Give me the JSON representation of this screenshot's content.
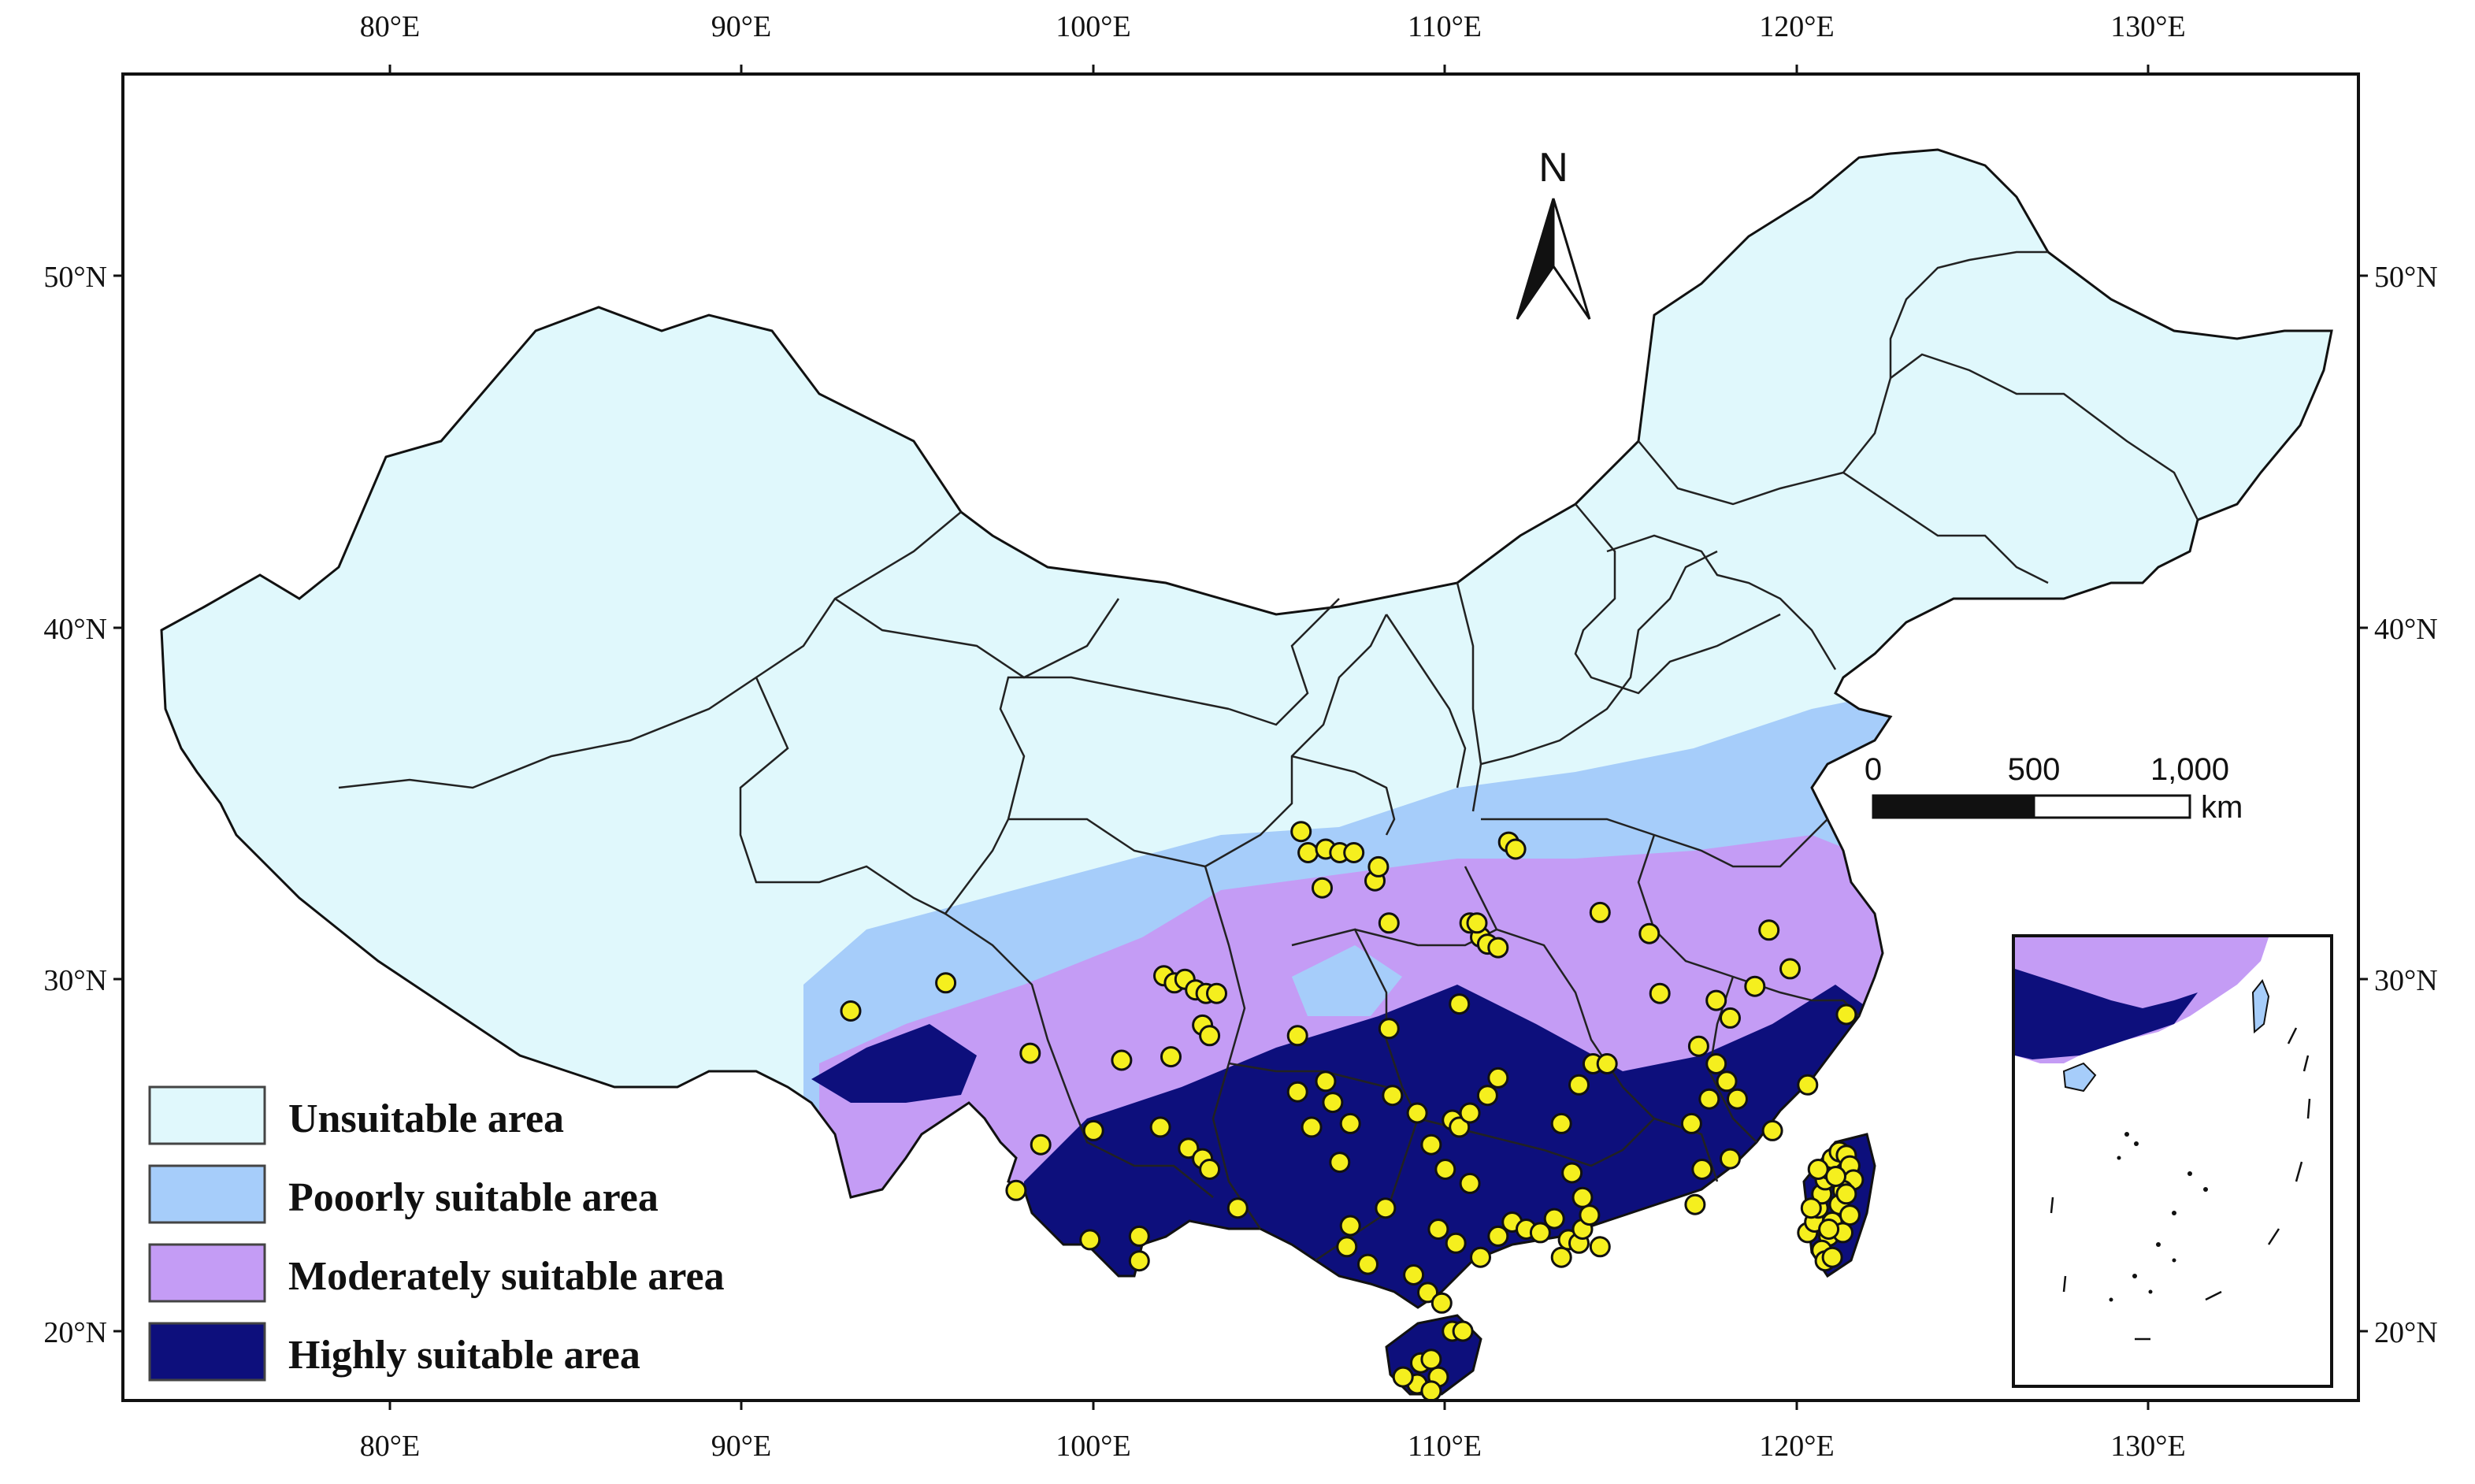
{
  "map": {
    "lon_ticks": [
      "80°E",
      "90°E",
      "100°E",
      "110°E",
      "120°E",
      "130°E"
    ],
    "lat_ticks": [
      "20°N",
      "30°N",
      "40°N",
      "50°N"
    ],
    "north_label": "N",
    "scale_bar": {
      "labels": [
        "0",
        "500",
        "1,000"
      ],
      "unit": "km"
    },
    "legend": [
      {
        "label": "Unsuitable area",
        "color": "#e0f8fc"
      },
      {
        "label": "Pooorly suitable area",
        "color": "#a6cdfa"
      },
      {
        "label": "Moderately suitable area",
        "color": "#c49cf5"
      },
      {
        "label": "Highly suitable area",
        "color": "#0d0f7c"
      }
    ],
    "occurrence_color": "#f5ef1e",
    "occurrences_lonlat": [
      [
        93.1,
        29.1
      ],
      [
        95.8,
        29.9
      ],
      [
        98.2,
        27.9
      ],
      [
        98.5,
        25.3
      ],
      [
        97.8,
        24.0
      ],
      [
        100.0,
        25.7
      ],
      [
        100.8,
        27.7
      ],
      [
        101.9,
        25.8
      ],
      [
        101.3,
        22.7
      ],
      [
        99.9,
        22.6
      ],
      [
        101.3,
        22.0
      ],
      [
        102.0,
        30.1
      ],
      [
        102.3,
        29.9
      ],
      [
        102.6,
        30.0
      ],
      [
        102.9,
        29.7
      ],
      [
        103.2,
        29.6
      ],
      [
        103.5,
        29.6
      ],
      [
        103.1,
        28.7
      ],
      [
        103.3,
        28.4
      ],
      [
        102.2,
        27.8
      ],
      [
        102.7,
        25.2
      ],
      [
        103.1,
        24.9
      ],
      [
        103.3,
        24.6
      ],
      [
        104.1,
        23.5
      ],
      [
        105.9,
        34.2
      ],
      [
        106.1,
        33.6
      ],
      [
        106.6,
        33.7
      ],
      [
        107.0,
        33.6
      ],
      [
        107.4,
        33.6
      ],
      [
        108.0,
        32.8
      ],
      [
        108.1,
        33.2
      ],
      [
        106.5,
        32.6
      ],
      [
        108.4,
        31.6
      ],
      [
        105.8,
        28.4
      ],
      [
        105.8,
        26.8
      ],
      [
        106.2,
        25.8
      ],
      [
        106.6,
        27.1
      ],
      [
        106.8,
        26.5
      ],
      [
        107.3,
        25.9
      ],
      [
        107.0,
        24.8
      ],
      [
        107.3,
        23.0
      ],
      [
        107.2,
        22.4
      ],
      [
        107.8,
        21.9
      ],
      [
        108.3,
        23.5
      ],
      [
        108.5,
        26.7
      ],
      [
        108.4,
        28.6
      ],
      [
        109.2,
        26.2
      ],
      [
        109.6,
        25.3
      ],
      [
        110.0,
        24.6
      ],
      [
        110.2,
        26.0
      ],
      [
        110.4,
        25.8
      ],
      [
        110.7,
        26.2
      ],
      [
        110.7,
        24.2
      ],
      [
        110.3,
        22.5
      ],
      [
        109.8,
        22.9
      ],
      [
        109.1,
        21.6
      ],
      [
        109.5,
        21.1
      ],
      [
        109.9,
        20.8
      ],
      [
        110.2,
        20.0
      ],
      [
        110.5,
        20.0
      ],
      [
        109.3,
        19.1
      ],
      [
        109.6,
        19.2
      ],
      [
        109.8,
        18.7
      ],
      [
        109.2,
        18.5
      ],
      [
        108.8,
        18.7
      ],
      [
        109.6,
        18.3
      ],
      [
        110.4,
        29.3
      ],
      [
        110.7,
        31.6
      ],
      [
        111.0,
        31.2
      ],
      [
        111.2,
        31.0
      ],
      [
        111.5,
        30.9
      ],
      [
        110.9,
        31.6
      ],
      [
        111.8,
        33.9
      ],
      [
        112.0,
        33.7
      ],
      [
        111.5,
        27.2
      ],
      [
        111.2,
        26.7
      ],
      [
        111.0,
        22.1
      ],
      [
        111.5,
        22.7
      ],
      [
        111.9,
        23.1
      ],
      [
        112.3,
        22.9
      ],
      [
        112.7,
        22.8
      ],
      [
        113.1,
        23.2
      ],
      [
        113.3,
        22.1
      ],
      [
        113.5,
        22.6
      ],
      [
        113.8,
        22.5
      ],
      [
        113.9,
        22.9
      ],
      [
        114.1,
        23.3
      ],
      [
        114.4,
        22.4
      ],
      [
        113.9,
        23.8
      ],
      [
        113.6,
        24.5
      ],
      [
        113.3,
        25.9
      ],
      [
        113.8,
        27.0
      ],
      [
        114.2,
        27.6
      ],
      [
        114.6,
        27.6
      ],
      [
        114.4,
        31.9
      ],
      [
        115.8,
        31.3
      ],
      [
        116.1,
        29.6
      ],
      [
        117.2,
        28.1
      ],
      [
        117.5,
        26.6
      ],
      [
        117.0,
        25.9
      ],
      [
        117.3,
        24.6
      ],
      [
        117.1,
        23.6
      ],
      [
        117.7,
        29.4
      ],
      [
        118.1,
        28.9
      ],
      [
        117.7,
        27.6
      ],
      [
        118.0,
        27.1
      ],
      [
        118.3,
        26.6
      ],
      [
        118.8,
        29.8
      ],
      [
        119.2,
        31.4
      ],
      [
        119.8,
        30.3
      ],
      [
        121.4,
        29.0
      ],
      [
        120.3,
        27.0
      ],
      [
        119.3,
        25.7
      ],
      [
        118.1,
        24.9
      ],
      [
        120.3,
        22.8
      ],
      [
        120.5,
        23.1
      ],
      [
        120.6,
        23.5
      ],
      [
        120.7,
        23.9
      ],
      [
        120.8,
        24.3
      ],
      [
        120.9,
        24.6
      ],
      [
        121.0,
        24.9
      ],
      [
        121.2,
        25.1
      ],
      [
        121.4,
        25.0
      ],
      [
        121.5,
        24.7
      ],
      [
        121.6,
        24.3
      ],
      [
        121.3,
        24.0
      ],
      [
        121.2,
        23.6
      ],
      [
        121.0,
        23.1
      ],
      [
        120.9,
        22.7
      ],
      [
        120.7,
        22.3
      ],
      [
        120.8,
        22.0
      ],
      [
        121.0,
        22.1
      ],
      [
        121.3,
        22.8
      ],
      [
        121.5,
        23.3
      ],
      [
        120.4,
        23.5
      ],
      [
        120.6,
        24.6
      ],
      [
        121.1,
        24.4
      ],
      [
        121.4,
        23.9
      ],
      [
        120.9,
        22.9
      ]
    ]
  }
}
